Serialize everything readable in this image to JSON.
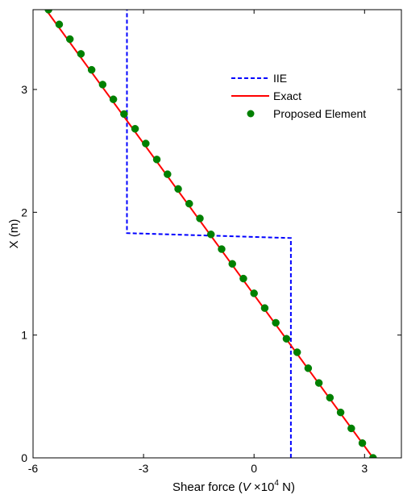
{
  "chart_data": {
    "type": "line",
    "xlabel_prefix": "Shear force (",
    "xlabel_var": "V",
    "xlabel_mid": " ×10",
    "xlabel_exp": "4",
    "xlabel_suffix": " N)",
    "ylabel": "X (m)",
    "xlim": [
      -6,
      4
    ],
    "ylim": [
      0,
      3.65
    ],
    "xticks": [
      -6,
      -3,
      0,
      3
    ],
    "yticks": [
      0,
      1,
      2,
      3
    ],
    "grid": false,
    "legend_position": "top-right",
    "series": [
      {
        "name": "IIE",
        "color": "#0000ff",
        "style": "dashed",
        "points": [
          [
            1.0,
            0
          ],
          [
            1.0,
            1.79
          ],
          [
            -3.45,
            1.83
          ],
          [
            -3.45,
            3.65
          ]
        ]
      },
      {
        "name": "Exact",
        "color": "#ff0000",
        "style": "solid",
        "points": [
          [
            3.23,
            0
          ],
          [
            -5.65,
            3.65
          ]
        ]
      },
      {
        "name": "Proposed Element",
        "color": "#008000",
        "style": "markers",
        "points": [
          [
            3.23,
            0.0
          ],
          [
            2.94,
            0.12
          ],
          [
            2.64,
            0.24
          ],
          [
            2.35,
            0.37
          ],
          [
            2.06,
            0.49
          ],
          [
            1.76,
            0.61
          ],
          [
            1.47,
            0.73
          ],
          [
            1.17,
            0.86
          ],
          [
            0.88,
            0.97
          ],
          [
            0.59,
            1.1
          ],
          [
            0.29,
            1.22
          ],
          [
            0.0,
            1.34
          ],
          [
            -0.29,
            1.46
          ],
          [
            -0.59,
            1.58
          ],
          [
            -0.88,
            1.7
          ],
          [
            -1.17,
            1.82
          ],
          [
            -1.47,
            1.95
          ],
          [
            -1.76,
            2.07
          ],
          [
            -2.06,
            2.19
          ],
          [
            -2.35,
            2.31
          ],
          [
            -2.64,
            2.43
          ],
          [
            -2.94,
            2.56
          ],
          [
            -3.23,
            2.68
          ],
          [
            -3.53,
            2.8
          ],
          [
            -3.82,
            2.92
          ],
          [
            -4.11,
            3.04
          ],
          [
            -4.41,
            3.16
          ],
          [
            -4.7,
            3.29
          ],
          [
            -5.0,
            3.41
          ],
          [
            -5.29,
            3.53
          ],
          [
            -5.58,
            3.65
          ]
        ]
      }
    ]
  }
}
